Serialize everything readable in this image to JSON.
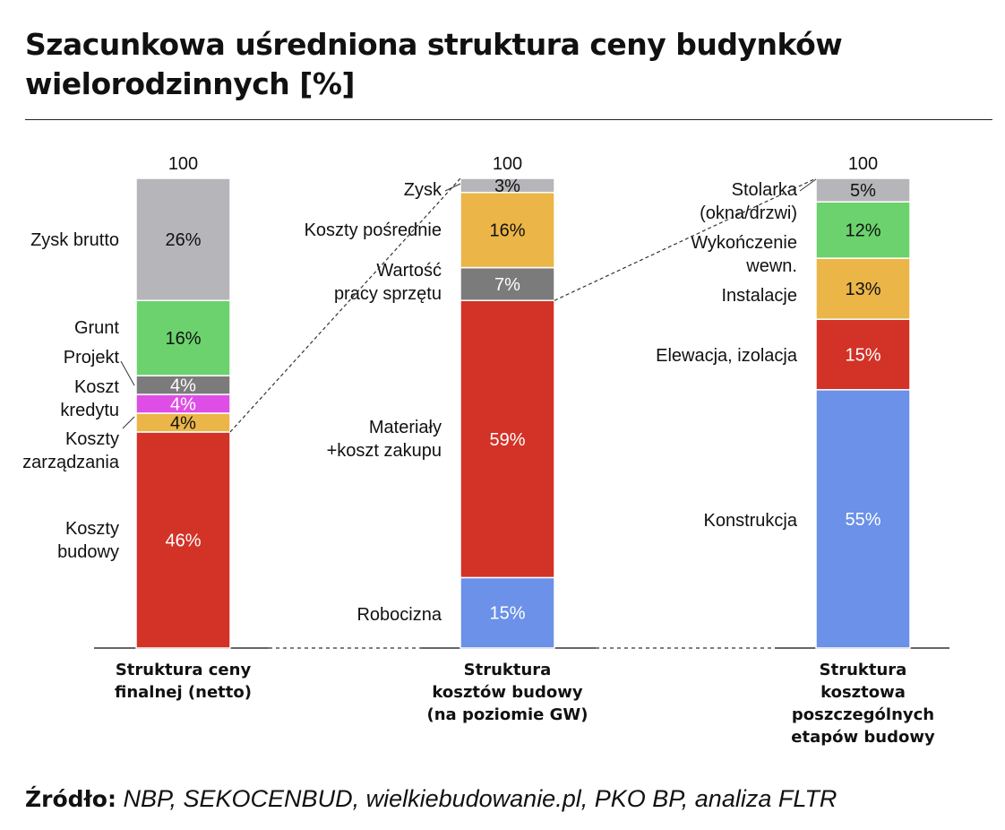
{
  "title": "Szacunkowa uśredniona struktura ceny budynków wielorodzinnych [%]",
  "source_label": "Źródło:",
  "source_text": " NBP, SEKOCENBUD, wielkiebudowanie.pl, PKO BP, analiza FLTR",
  "chart_data": {
    "type": "bar",
    "stacked": true,
    "ylim": [
      0,
      100
    ],
    "grid": false,
    "colors": {
      "grey_light": "#b6b6ba",
      "green": "#6bd26d",
      "grey_dark": "#7b7b7b",
      "magenta": "#de4ee6",
      "orange": "#ebb548",
      "red": "#d33227",
      "blue": "#6b91e8"
    },
    "bars": [
      {
        "category": [
          "Struktura ceny",
          "finalnej (netto)"
        ],
        "total_label": "100",
        "segments": [
          {
            "value": 46,
            "label": "46%",
            "name": [
              "Koszty",
              "budowy"
            ],
            "color": "#d33227",
            "text_color": "#ffffff"
          },
          {
            "value": 4,
            "label": "4%",
            "name": [
              "Koszty",
              "zarządzania"
            ],
            "color": "#ebb548",
            "text_color": "#111111"
          },
          {
            "value": 4,
            "label": "4%",
            "name": [
              "Koszt",
              "kredytu"
            ],
            "color": "#de4ee6",
            "text_color": "#ffffff"
          },
          {
            "value": 4,
            "label": "4%",
            "name": [
              "Projekt"
            ],
            "color": "#7b7b7b",
            "text_color": "#ffffff"
          },
          {
            "value": 16,
            "label": "16%",
            "name": [
              "Grunt"
            ],
            "color": "#6bd26d",
            "text_color": "#111111"
          },
          {
            "value": 26,
            "label": "26%",
            "name": [
              "Zysk brutto"
            ],
            "color": "#b6b6ba",
            "text_color": "#111111"
          }
        ]
      },
      {
        "category": [
          "Struktura",
          "kosztów budowy",
          "(na poziomie GW)"
        ],
        "total_label": "100",
        "segments": [
          {
            "value": 15,
            "label": "15%",
            "name": [
              "Robocizna"
            ],
            "color": "#6b91e8",
            "text_color": "#ffffff"
          },
          {
            "value": 59,
            "label": "59%",
            "name": [
              "Materiały",
              "+koszt zakupu"
            ],
            "color": "#d33227",
            "text_color": "#ffffff"
          },
          {
            "value": 7,
            "label": "7%",
            "name": [
              "Wartość",
              "pracy sprzętu"
            ],
            "color": "#7b7b7b",
            "text_color": "#ffffff"
          },
          {
            "value": 16,
            "label": "16%",
            "name": [
              "Koszty pośrednie"
            ],
            "color": "#ebb548",
            "text_color": "#111111"
          },
          {
            "value": 3,
            "label": "3%",
            "name": [
              "Zysk"
            ],
            "color": "#b6b6ba",
            "text_color": "#111111"
          }
        ]
      },
      {
        "category": [
          "Struktura",
          "kosztowa",
          "poszczególnych",
          "etapów budowy"
        ],
        "total_label": "100",
        "segments": [
          {
            "value": 55,
            "label": "55%",
            "name": [
              "Konstrukcja"
            ],
            "color": "#6b91e8",
            "text_color": "#ffffff"
          },
          {
            "value": 15,
            "label": "15%",
            "name": [
              "Elewacja, izolacja"
            ],
            "color": "#d33227",
            "text_color": "#ffffff"
          },
          {
            "value": 13,
            "label": "13%",
            "name": [
              "Instalacje"
            ],
            "color": "#ebb548",
            "text_color": "#111111"
          },
          {
            "value": 12,
            "label": "12%",
            "name": [
              "Wykończenie",
              "wewn."
            ],
            "color": "#6bd26d",
            "text_color": "#111111"
          },
          {
            "value": 5,
            "label": "5%",
            "name": [
              "Stolarka",
              "(okna/drzwi)"
            ],
            "color": "#b6b6ba",
            "text_color": "#111111"
          }
        ]
      }
    ]
  }
}
